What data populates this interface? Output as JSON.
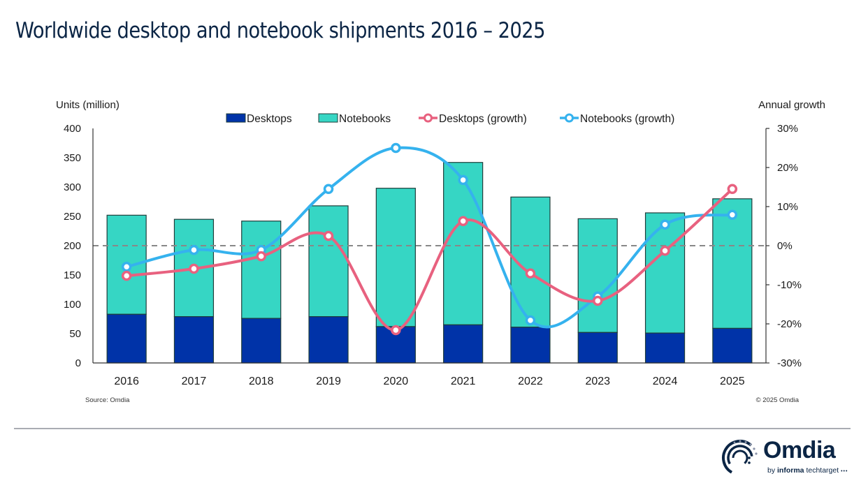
{
  "page": {
    "title": "Worldwide desktop and notebook shipments 2016 – 2025",
    "source_note": "Source: Omdia",
    "copyright_note": "© 2025 Omdia",
    "logo": {
      "word": "Omdia",
      "sub_prefix": "by ",
      "sub_bold": "informa",
      "sub_suffix": " techtarget",
      "dots": "•••"
    }
  },
  "colors": {
    "desktops": "#0033a8",
    "notebooks": "#36d6c4",
    "desktops_growth": "#e8617f",
    "notebooks_growth": "#35b2ee",
    "bar_outline": "#1f3d3a",
    "zero_line": "#888888",
    "axis": "#333333",
    "title": "#0b2545"
  },
  "chart_data": {
    "type": "bar",
    "subtype": "stacked bar + line (dual axis)",
    "title": "Worldwide desktop and notebook shipments 2016 – 2025",
    "categories": [
      "2016",
      "2017",
      "2018",
      "2019",
      "2020",
      "2021",
      "2022",
      "2023",
      "2024",
      "2025"
    ],
    "ylabel": "Units (million)",
    "ylabel_right": "Annual growth",
    "ylim": [
      0,
      400
    ],
    "yticks": [
      0,
      50,
      100,
      150,
      200,
      250,
      300,
      350,
      400
    ],
    "ylim_right": [
      -30,
      30
    ],
    "yticks_right": [
      -30,
      -20,
      -10,
      0,
      10,
      20,
      30
    ],
    "yticks_right_labels": [
      "-30%",
      "-20%",
      "-10%",
      "0%",
      "10%",
      "20%",
      "30%"
    ],
    "zero_growth_reference_line": "dashed",
    "legend_position": "top-center",
    "grid": false,
    "series": [
      {
        "name": "Desktops",
        "kind": "bar",
        "axis": "left",
        "values": [
          83,
          79,
          76,
          79,
          62,
          65,
          61,
          52,
          51,
          59
        ]
      },
      {
        "name": "Notebooks",
        "kind": "bar",
        "axis": "left",
        "values": [
          169,
          166,
          166,
          189,
          236,
          277,
          222,
          194,
          205,
          221
        ]
      },
      {
        "name": "Desktops (growth)",
        "kind": "line",
        "axis": "right",
        "unit": "%",
        "values": [
          -7.7,
          -5.9,
          -2.7,
          2.5,
          -21.6,
          6.3,
          -7.1,
          -14.1,
          -1.3,
          14.5
        ]
      },
      {
        "name": "Notebooks (growth)",
        "kind": "line",
        "axis": "right",
        "unit": "%",
        "values": [
          -5.4,
          -1.1,
          -1.1,
          14.5,
          25.0,
          16.8,
          -19.1,
          -13.0,
          5.4,
          7.9
        ]
      }
    ]
  }
}
